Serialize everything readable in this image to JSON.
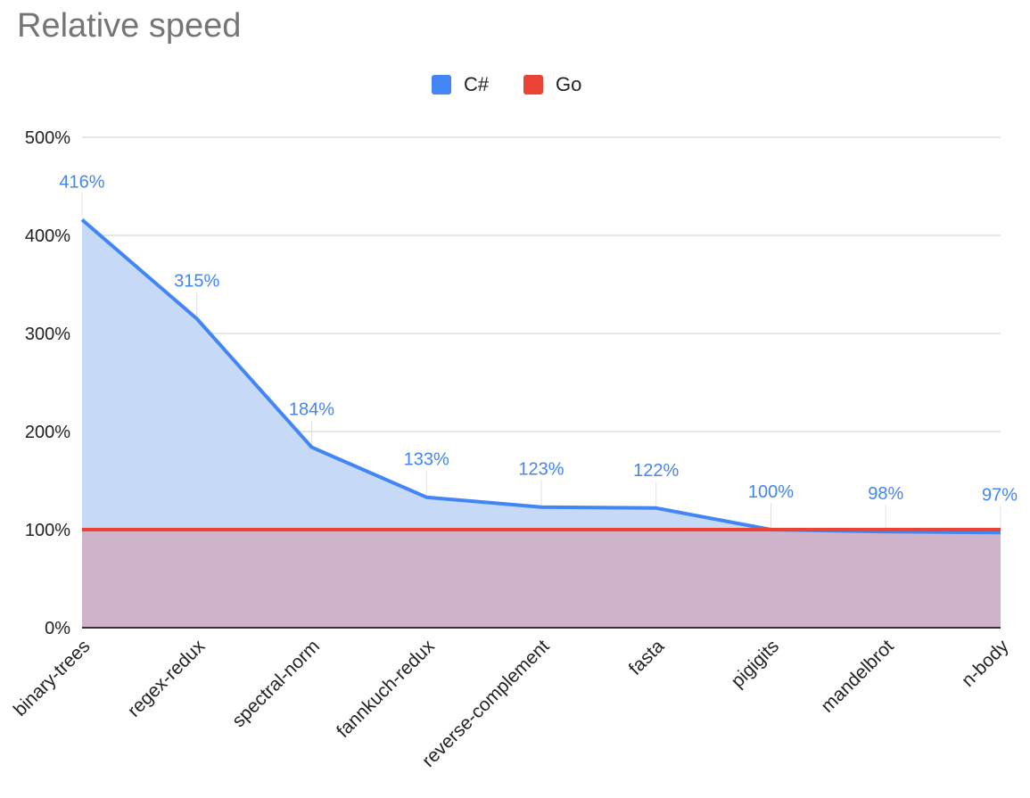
{
  "chart_data": {
    "type": "area",
    "title": "Relative speed",
    "categories": [
      "binary-trees",
      "regex-redux",
      "spectral-norm",
      "fannkuch-redux",
      "reverse-complement",
      "fasta",
      "pigigits",
      "mandelbrot",
      "n-body"
    ],
    "series": [
      {
        "name": "C#",
        "values": [
          416,
          315,
          184,
          133,
          123,
          122,
          100,
          98,
          97
        ],
        "color": "#4285f4",
        "fill": "#c6daf8",
        "labels": [
          "416%",
          "315%",
          "184%",
          "133%",
          "123%",
          "122%",
          "100%",
          "98%",
          "97%"
        ]
      },
      {
        "name": "Go",
        "values": [
          100,
          100,
          100,
          100,
          100,
          100,
          100,
          100,
          100
        ],
        "color": "#ea4335",
        "fill": "#d0abc3"
      }
    ],
    "yticks": [
      "0%",
      "100%",
      "200%",
      "300%",
      "400%",
      "500%"
    ],
    "ylim": [
      0,
      500
    ],
    "grid": true,
    "legend": "top-center",
    "xlabel": "",
    "ylabel": ""
  }
}
